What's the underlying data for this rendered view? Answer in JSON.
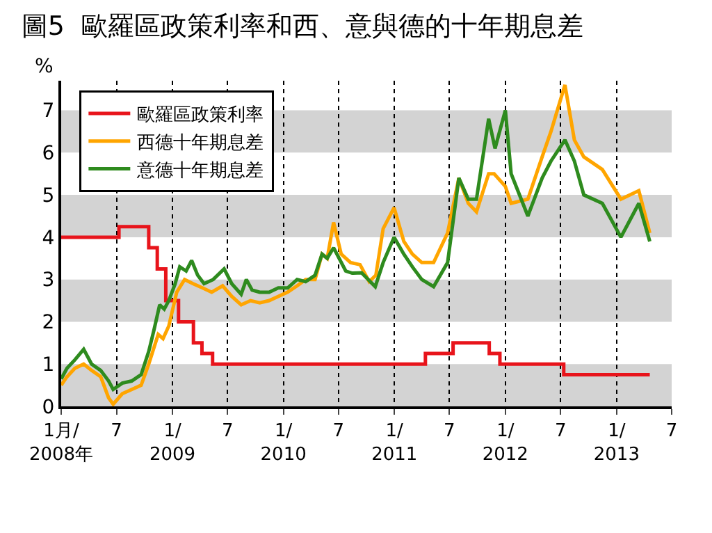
{
  "chart_data": {
    "type": "line",
    "title": "圖5  歐羅區政策利率和西、意與德的十年期息差",
    "ylabel": "%",
    "xlim": [
      "2008-01-01",
      "2013-07-01"
    ],
    "xticks": [
      {
        "value": "2008-01-01",
        "label": "1月/\n2008年"
      },
      {
        "value": "2008-07-01",
        "label": "7"
      },
      {
        "value": "2009-01-01",
        "label": "1/\n2009"
      },
      {
        "value": "2009-07-01",
        "label": "7"
      },
      {
        "value": "2010-01-01",
        "label": "1/\n2010"
      },
      {
        "value": "2010-07-01",
        "label": "7"
      },
      {
        "value": "2011-01-01",
        "label": "1/\n2011"
      },
      {
        "value": "2011-07-01",
        "label": "7"
      },
      {
        "value": "2012-01-01",
        "label": "1/\n2012"
      },
      {
        "value": "2012-07-01",
        "label": "7"
      },
      {
        "value": "2013-01-01",
        "label": "1/\n2013"
      },
      {
        "value": "2013-07-01",
        "label": "7"
      }
    ],
    "ylim": [
      0,
      7.7
    ],
    "yticks": [
      0,
      1,
      2,
      3,
      4,
      5,
      6,
      7
    ],
    "grid": "x",
    "legend": "top left",
    "bands": [
      {
        "axis": "y",
        "from": 0,
        "to": 1,
        "color": "#d3d3d3"
      },
      {
        "axis": "y",
        "from": 2,
        "to": 3,
        "color": "#d3d3d3"
      },
      {
        "axis": "y",
        "from": 4,
        "to": 5,
        "color": "#d3d3d3"
      },
      {
        "axis": "y",
        "from": 6,
        "to": 7,
        "color": "#d3d3d3"
      }
    ],
    "series": [
      {
        "name": "歐羅區政策利率",
        "type": "step",
        "color": "#e8141b",
        "x": [
          "2008-01-01",
          "2008-07-09",
          "2008-10-15",
          "2008-11-12",
          "2008-12-10",
          "2009-01-21",
          "2009-03-11",
          "2009-04-08",
          "2009-05-13",
          "2011-04-13",
          "2011-07-13",
          "2011-11-09",
          "2011-12-14",
          "2012-07-11",
          "2013-04-20"
        ],
        "values": [
          4.0,
          4.25,
          3.75,
          3.25,
          2.5,
          2.0,
          1.5,
          1.25,
          1.0,
          1.25,
          1.5,
          1.25,
          1.0,
          0.75,
          0.75
        ]
      },
      {
        "name": "西德十年期息差",
        "color": "#ffa500",
        "x": [
          "2008-01-01",
          "2008-01-20",
          "2008-02-15",
          "2008-03-15",
          "2008-04-10",
          "2008-05-10",
          "2008-06-05",
          "2008-06-20",
          "2008-07-20",
          "2008-08-20",
          "2008-09-20",
          "2008-10-15",
          "2008-11-15",
          "2008-12-01",
          "2008-12-20",
          "2009-01-15",
          "2009-02-10",
          "2009-03-10",
          "2009-04-10",
          "2009-05-10",
          "2009-06-15",
          "2009-07-15",
          "2009-08-15",
          "2009-09-15",
          "2009-10-15",
          "2009-11-15",
          "2009-12-15",
          "2010-01-15",
          "2010-02-15",
          "2010-03-15",
          "2010-04-15",
          "2010-05-08",
          "2010-05-25",
          "2010-06-15",
          "2010-07-10",
          "2010-08-10",
          "2010-09-10",
          "2010-10-10",
          "2010-11-01",
          "2010-11-25",
          "2010-12-31",
          "2011-02-01",
          "2011-03-01",
          "2011-04-01",
          "2011-05-10",
          "2011-06-25",
          "2011-08-01",
          "2011-09-01",
          "2011-09-28",
          "2011-11-07",
          "2011-11-25",
          "2012-01-01",
          "2012-01-20",
          "2012-03-15",
          "2012-05-01",
          "2012-05-30",
          "2012-07-15",
          "2012-08-15",
          "2012-09-15",
          "2012-11-15",
          "2013-01-15",
          "2013-03-15",
          "2013-04-20"
        ],
        "values": [
          0.5,
          0.7,
          0.9,
          1.0,
          0.85,
          0.7,
          0.2,
          0.05,
          0.3,
          0.4,
          0.5,
          1.0,
          1.7,
          1.6,
          1.9,
          2.7,
          3.0,
          2.9,
          2.8,
          2.7,
          2.85,
          2.6,
          2.4,
          2.5,
          2.45,
          2.5,
          2.6,
          2.7,
          2.85,
          3.0,
          3.0,
          3.6,
          3.5,
          4.35,
          3.6,
          3.4,
          3.35,
          2.95,
          3.1,
          4.2,
          4.7,
          3.9,
          3.6,
          3.4,
          3.4,
          4.1,
          5.4,
          4.8,
          4.6,
          5.5,
          5.5,
          5.2,
          4.8,
          4.9,
          5.9,
          6.5,
          7.6,
          6.3,
          5.9,
          5.6,
          4.9,
          5.1,
          4.1
        ]
      },
      {
        "name": "意德十年期息差",
        "color": "#2e8b1e",
        "x": [
          "2008-01-01",
          "2008-01-20",
          "2008-02-15",
          "2008-03-15",
          "2008-04-10",
          "2008-05-10",
          "2008-06-05",
          "2008-06-20",
          "2008-07-20",
          "2008-08-20",
          "2008-09-20",
          "2008-10-15",
          "2008-11-01",
          "2008-11-20",
          "2008-12-05",
          "2008-12-20",
          "2009-01-10",
          "2009-01-25",
          "2009-02-15",
          "2009-03-05",
          "2009-03-25",
          "2009-04-15",
          "2009-05-15",
          "2009-06-20",
          "2009-07-15",
          "2009-08-15",
          "2009-09-01",
          "2009-09-20",
          "2009-10-15",
          "2009-11-15",
          "2009-12-15",
          "2010-01-15",
          "2010-02-15",
          "2010-03-15",
          "2010-04-15",
          "2010-05-08",
          "2010-05-25",
          "2010-06-15",
          "2010-07-25",
          "2010-08-15",
          "2010-09-15",
          "2010-10-30",
          "2010-11-25",
          "2010-12-31",
          "2011-02-01",
          "2011-03-01",
          "2011-04-01",
          "2011-05-10",
          "2011-06-25",
          "2011-08-01",
          "2011-09-01",
          "2011-09-28",
          "2011-11-07",
          "2011-11-28",
          "2012-01-01",
          "2012-01-20",
          "2012-03-15",
          "2012-05-01",
          "2012-05-30",
          "2012-07-15",
          "2012-08-15",
          "2012-09-15",
          "2012-11-15",
          "2013-01-15",
          "2013-03-15",
          "2013-04-20"
        ],
        "values": [
          0.65,
          0.9,
          1.1,
          1.35,
          1.0,
          0.85,
          0.6,
          0.4,
          0.55,
          0.6,
          0.75,
          1.3,
          1.8,
          2.4,
          2.3,
          2.5,
          2.9,
          3.3,
          3.2,
          3.45,
          3.1,
          2.9,
          3.0,
          3.25,
          2.9,
          2.65,
          3.0,
          2.75,
          2.7,
          2.7,
          2.8,
          2.8,
          3.0,
          2.95,
          3.1,
          3.6,
          3.5,
          3.75,
          3.2,
          3.15,
          3.16,
          2.83,
          3.4,
          4.0,
          3.6,
          3.3,
          3.0,
          2.83,
          3.4,
          5.4,
          4.9,
          4.9,
          6.8,
          6.1,
          7.0,
          5.5,
          4.5,
          5.4,
          5.8,
          6.3,
          5.8,
          5.0,
          4.8,
          4.0,
          4.8,
          3.9
        ]
      }
    ]
  }
}
